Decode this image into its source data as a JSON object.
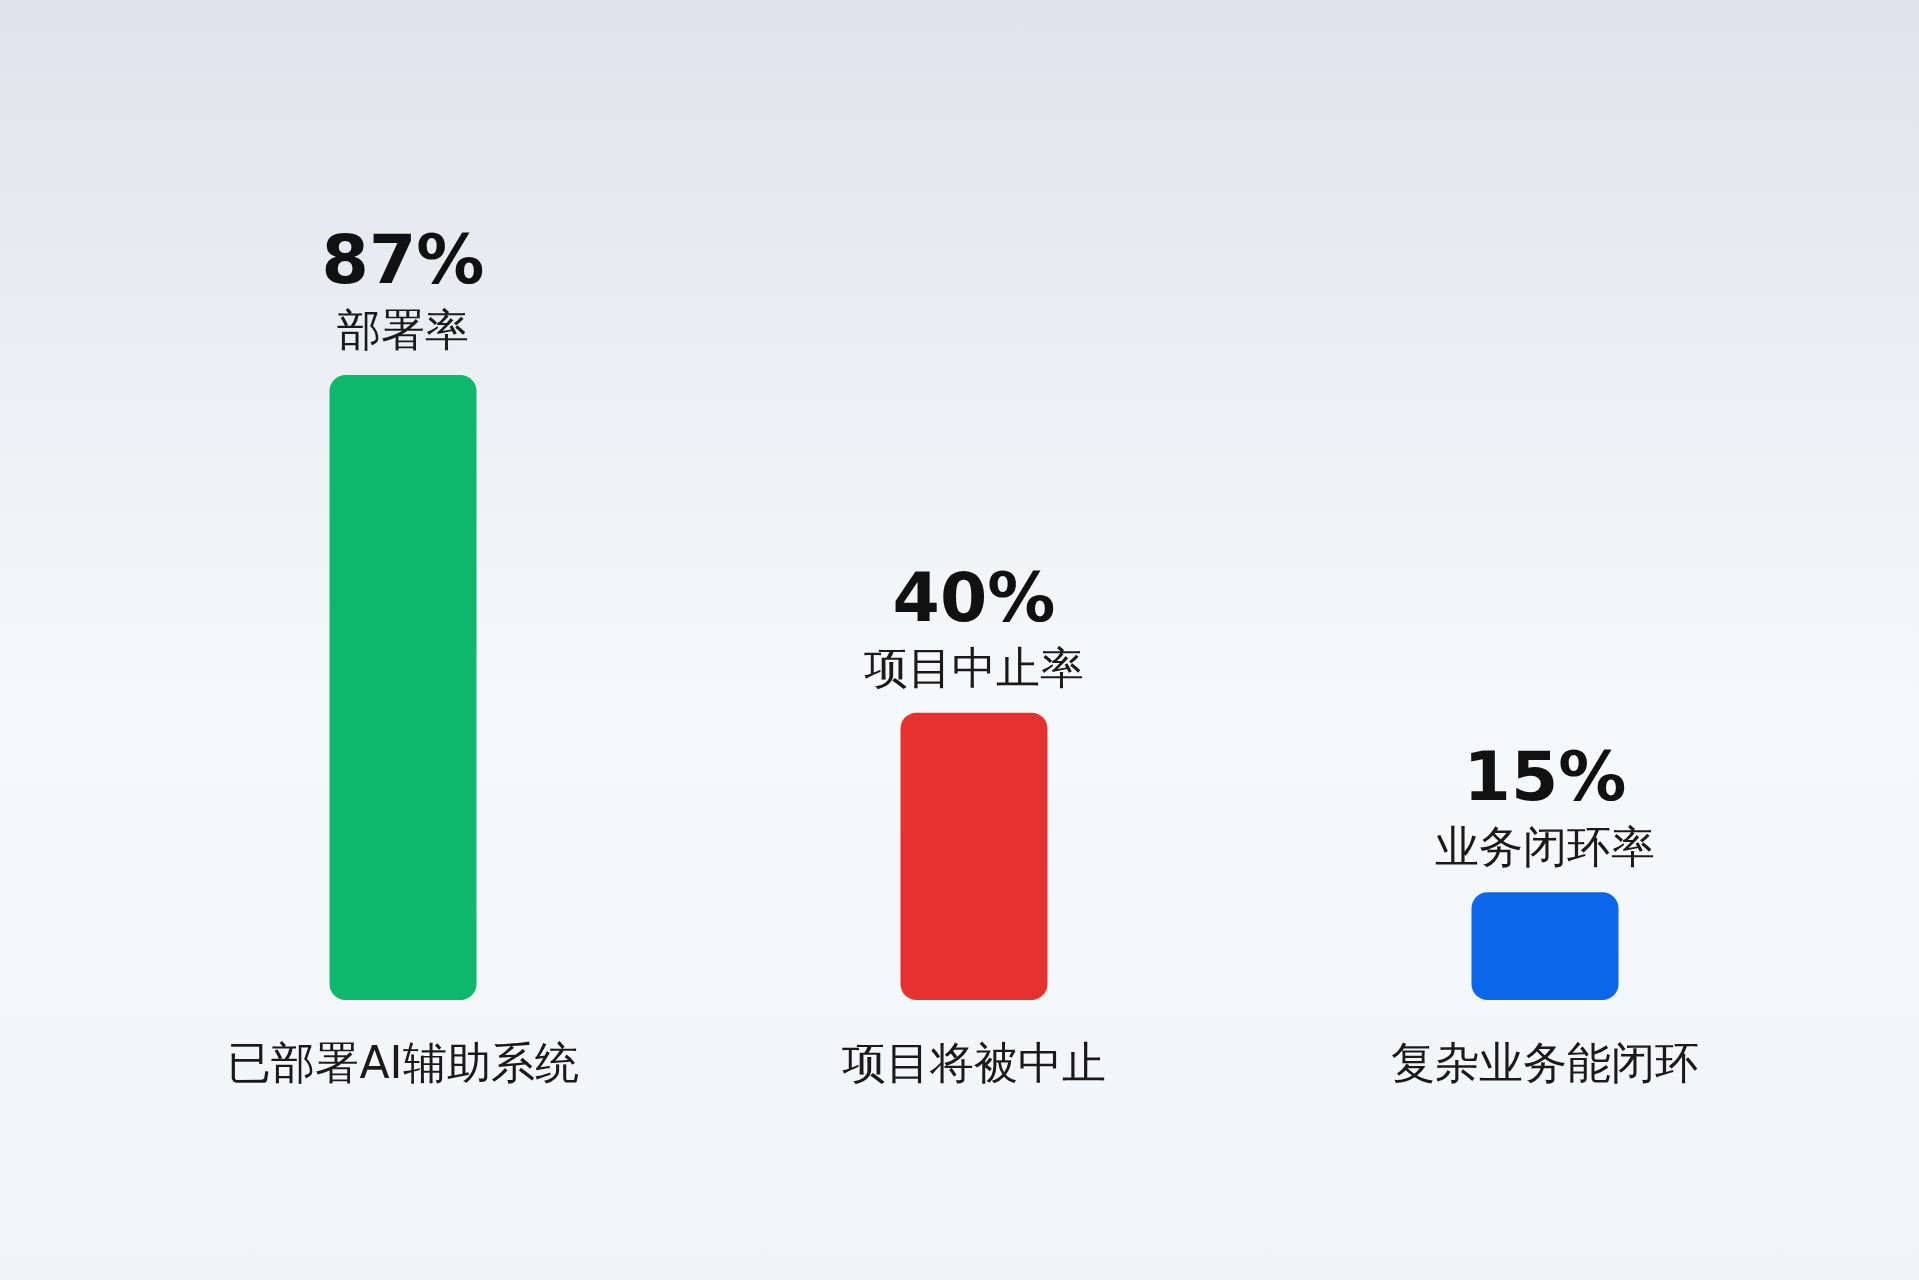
{
  "chart_data": {
    "type": "bar",
    "categories": [
      "已部署AI辅助系统",
      "项目将被中止",
      "复杂业务能闭环"
    ],
    "values": [
      87,
      40,
      15
    ],
    "colors": [
      "#0db86c",
      "#e5322f",
      "#0c66ea"
    ],
    "value_labels": [
      "87%",
      "40%",
      "15%"
    ],
    "annotations": [
      {
        "text": "部署率",
        "x": "已部署AI辅助系统",
        "y": 87
      },
      {
        "text": "项目中止率",
        "x": "项目将被中止",
        "y": 40
      },
      {
        "text": "业务闭环率",
        "x": "复杂业务能闭环",
        "y": 15
      }
    ]
  }
}
